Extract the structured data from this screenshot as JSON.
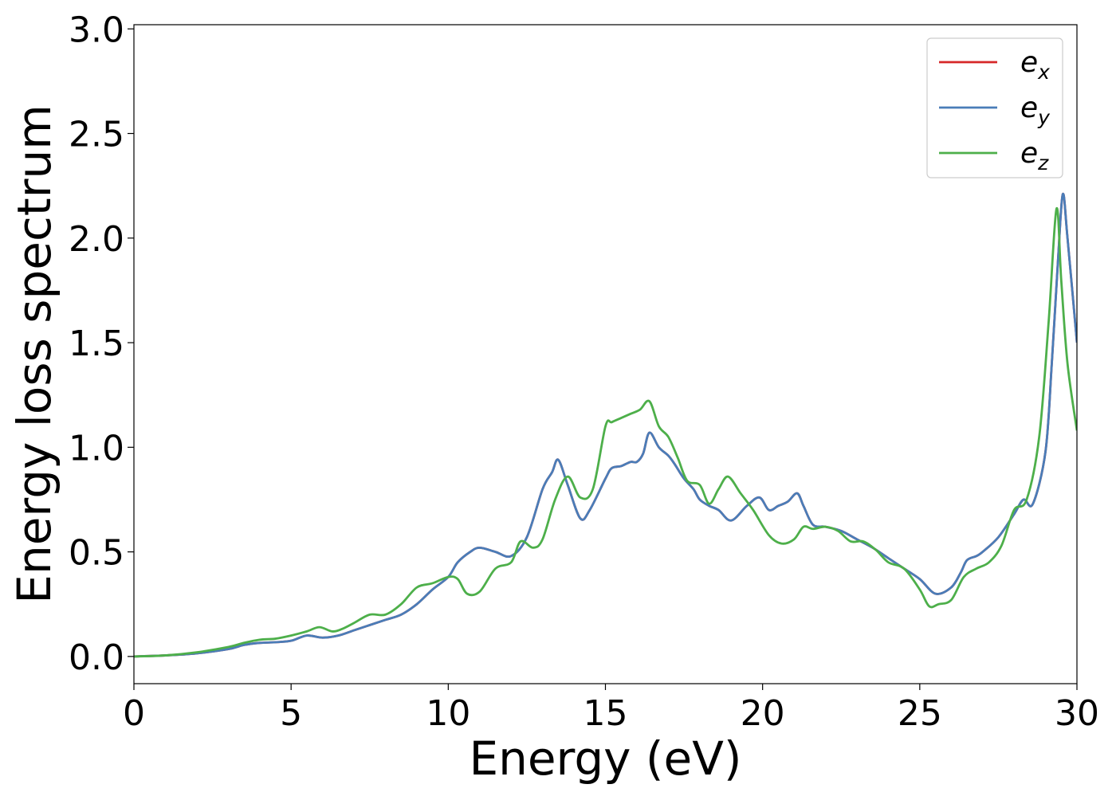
{
  "chart_data": {
    "type": "line",
    "title": "",
    "xlabel": "Energy (eV)",
    "ylabel": "Energy loss spectrum",
    "xlim": [
      0,
      30
    ],
    "ylim": [
      -0.13,
      3.02
    ],
    "xticks": [
      0,
      5,
      10,
      15,
      20,
      25,
      30
    ],
    "xtick_labels": [
      "0",
      "5",
      "10",
      "15",
      "20",
      "25",
      "30"
    ],
    "yticks": [
      0.0,
      0.5,
      1.0,
      1.5,
      2.0,
      2.5,
      3.0
    ],
    "ytick_labels": [
      "0.0",
      "0.5",
      "1.0",
      "1.5",
      "2.0",
      "2.5",
      "3.0"
    ],
    "grid": false,
    "legend": {
      "position": "top-right"
    },
    "series": [
      {
        "name": "e_x",
        "label_base": "e",
        "label_sub": "x",
        "color": "#d62728",
        "x": [
          0,
          1,
          2,
          3,
          3.5,
          4,
          4.5,
          5,
          5.5,
          6,
          6.5,
          7,
          7.5,
          8,
          8.5,
          9,
          9.5,
          10,
          10.3,
          10.7,
          11,
          11.5,
          12,
          12.5,
          13,
          13.3,
          13.5,
          13.8,
          14.2,
          14.5,
          15,
          15.2,
          15.5,
          15.8,
          16,
          16.2,
          16.4,
          16.7,
          17,
          17.2,
          17.5,
          17.8,
          18,
          18.3,
          18.6,
          19,
          19.5,
          19.9,
          20.2,
          20.5,
          20.8,
          21.1,
          21.3,
          21.6,
          22,
          22.5,
          23,
          23.5,
          24,
          24.5,
          25,
          25.5,
          26,
          26.3,
          26.5,
          26.8,
          27,
          27.5,
          28,
          28.3,
          28.6,
          29,
          29.2,
          29.4,
          29.55,
          29.7,
          30
        ],
        "y": [
          0.0,
          0.005,
          0.015,
          0.035,
          0.055,
          0.065,
          0.068,
          0.075,
          0.1,
          0.09,
          0.1,
          0.125,
          0.15,
          0.175,
          0.2,
          0.25,
          0.32,
          0.38,
          0.45,
          0.5,
          0.52,
          0.5,
          0.48,
          0.57,
          0.8,
          0.88,
          0.94,
          0.82,
          0.66,
          0.7,
          0.85,
          0.9,
          0.91,
          0.93,
          0.93,
          0.97,
          1.07,
          1.0,
          0.96,
          0.92,
          0.85,
          0.8,
          0.75,
          0.72,
          0.7,
          0.65,
          0.72,
          0.76,
          0.7,
          0.72,
          0.74,
          0.78,
          0.72,
          0.63,
          0.62,
          0.6,
          0.56,
          0.52,
          0.47,
          0.42,
          0.37,
          0.3,
          0.33,
          0.4,
          0.46,
          0.48,
          0.5,
          0.57,
          0.68,
          0.75,
          0.73,
          0.98,
          1.4,
          1.9,
          2.21,
          2.0,
          1.5
        ]
      },
      {
        "name": "e_y",
        "label_base": "e",
        "label_sub": "y",
        "color": "#4a7db8",
        "x": [
          0,
          1,
          2,
          3,
          3.5,
          4,
          4.5,
          5,
          5.5,
          6,
          6.5,
          7,
          7.5,
          8,
          8.5,
          9,
          9.5,
          10,
          10.3,
          10.7,
          11,
          11.5,
          12,
          12.5,
          13,
          13.3,
          13.5,
          13.8,
          14.2,
          14.5,
          15,
          15.2,
          15.5,
          15.8,
          16,
          16.2,
          16.4,
          16.7,
          17,
          17.2,
          17.5,
          17.8,
          18,
          18.3,
          18.6,
          19,
          19.5,
          19.9,
          20.2,
          20.5,
          20.8,
          21.1,
          21.3,
          21.6,
          22,
          22.5,
          23,
          23.5,
          24,
          24.5,
          25,
          25.5,
          26,
          26.3,
          26.5,
          26.8,
          27,
          27.5,
          28,
          28.3,
          28.6,
          29,
          29.2,
          29.4,
          29.55,
          29.7,
          30
        ],
        "y": [
          0.0,
          0.005,
          0.015,
          0.035,
          0.055,
          0.065,
          0.068,
          0.075,
          0.1,
          0.09,
          0.1,
          0.125,
          0.15,
          0.175,
          0.2,
          0.25,
          0.32,
          0.38,
          0.45,
          0.5,
          0.52,
          0.5,
          0.48,
          0.57,
          0.8,
          0.88,
          0.94,
          0.82,
          0.66,
          0.7,
          0.85,
          0.9,
          0.91,
          0.93,
          0.93,
          0.97,
          1.07,
          1.0,
          0.96,
          0.92,
          0.85,
          0.8,
          0.75,
          0.72,
          0.7,
          0.65,
          0.72,
          0.76,
          0.7,
          0.72,
          0.74,
          0.78,
          0.72,
          0.63,
          0.62,
          0.6,
          0.56,
          0.52,
          0.47,
          0.42,
          0.37,
          0.3,
          0.33,
          0.4,
          0.46,
          0.48,
          0.5,
          0.57,
          0.68,
          0.75,
          0.73,
          0.98,
          1.4,
          1.9,
          2.21,
          2.0,
          1.5
        ]
      },
      {
        "name": "e_z",
        "label_base": "e",
        "label_sub": "z",
        "color": "#4daf4a",
        "x": [
          0,
          1,
          2,
          3,
          3.5,
          4,
          4.5,
          5,
          5.5,
          5.9,
          6.3,
          6.6,
          7,
          7.5,
          8,
          8.5,
          9,
          9.5,
          10,
          10.3,
          10.6,
          11,
          11.5,
          12,
          12.3,
          12.7,
          13,
          13.4,
          13.8,
          14.2,
          14.6,
          15,
          15.2,
          15.5,
          15.8,
          16.1,
          16.4,
          16.7,
          17,
          17.3,
          17.6,
          18,
          18.3,
          18.6,
          18.9,
          19.3,
          19.7,
          20.2,
          20.6,
          21,
          21.3,
          21.6,
          22,
          22.4,
          22.8,
          23.2,
          23.6,
          24,
          24.5,
          25,
          25.3,
          25.6,
          26,
          26.4,
          26.8,
          27.2,
          27.6,
          28,
          28.4,
          28.8,
          29.1,
          29.35,
          29.5,
          29.7,
          30
        ],
        "y": [
          0.0,
          0.005,
          0.02,
          0.045,
          0.065,
          0.08,
          0.085,
          0.1,
          0.12,
          0.14,
          0.12,
          0.13,
          0.16,
          0.2,
          0.2,
          0.25,
          0.33,
          0.35,
          0.38,
          0.37,
          0.3,
          0.31,
          0.42,
          0.45,
          0.55,
          0.52,
          0.56,
          0.75,
          0.86,
          0.76,
          0.8,
          1.1,
          1.12,
          1.14,
          1.16,
          1.18,
          1.22,
          1.1,
          1.05,
          0.95,
          0.84,
          0.82,
          0.73,
          0.8,
          0.86,
          0.78,
          0.7,
          0.58,
          0.54,
          0.56,
          0.62,
          0.61,
          0.62,
          0.6,
          0.55,
          0.55,
          0.51,
          0.45,
          0.42,
          0.32,
          0.24,
          0.25,
          0.27,
          0.38,
          0.42,
          0.45,
          0.53,
          0.7,
          0.75,
          1.05,
          1.6,
          2.14,
          1.8,
          1.4,
          1.08
        ]
      }
    ]
  }
}
